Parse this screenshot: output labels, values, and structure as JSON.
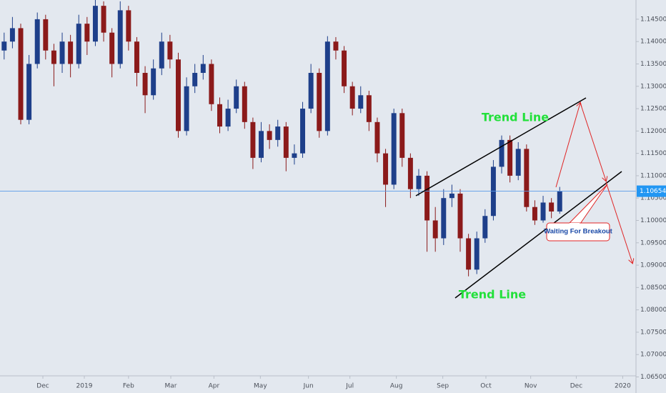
{
  "chart_data": {
    "type": "candlestick",
    "up_color": "#1e3f8a",
    "down_color": "#8b1a1a",
    "grid": false,
    "xlim": [
      -0.5,
      76.2
    ],
    "xticks": [
      {
        "value": 4.67,
        "label": "Dec"
      },
      {
        "value": 9.67,
        "label": "2019"
      },
      {
        "value": 15.0,
        "label": "Feb"
      },
      {
        "value": 20.1,
        "label": "Mar"
      },
      {
        "value": 25.3,
        "label": "Apr"
      },
      {
        "value": 30.9,
        "label": "May"
      },
      {
        "value": 36.7,
        "label": "Jun"
      },
      {
        "value": 41.7,
        "label": "Jul"
      },
      {
        "value": 47.3,
        "label": "Aug"
      },
      {
        "value": 52.9,
        "label": "Sep"
      },
      {
        "value": 58.1,
        "label": "Oct"
      },
      {
        "value": 63.5,
        "label": "Nov"
      },
      {
        "value": 69.0,
        "label": "Dec"
      },
      {
        "value": 74.6,
        "label": "2020"
      }
    ],
    "ylim": [
      1.0654,
      1.1493
    ],
    "yticks": [
      {
        "value": 1.065,
        "label": "1.06500"
      },
      {
        "value": 1.07,
        "label": "1.07000"
      },
      {
        "value": 1.075,
        "label": "1.07500"
      },
      {
        "value": 1.08,
        "label": "1.08000"
      },
      {
        "value": 1.085,
        "label": "1.08500"
      },
      {
        "value": 1.09,
        "label": "1.09000"
      },
      {
        "value": 1.095,
        "label": "1.09500"
      },
      {
        "value": 1.1,
        "label": "1.10000"
      },
      {
        "value": 1.105,
        "label": "1.10500"
      },
      {
        "value": 1.11,
        "label": "1.11000"
      },
      {
        "value": 1.115,
        "label": "1.11500"
      },
      {
        "value": 1.12,
        "label": "1.12000"
      },
      {
        "value": 1.125,
        "label": "1.12500"
      },
      {
        "value": 1.13,
        "label": "1.13000"
      },
      {
        "value": 1.135,
        "label": "1.13500"
      },
      {
        "value": 1.14,
        "label": "1.14000"
      },
      {
        "value": 1.145,
        "label": "1.14500"
      }
    ],
    "last_price": {
      "value": 1.10654,
      "label": "1.10654"
    },
    "open": [
      1.138,
      1.14,
      1.143,
      1.1225,
      1.135,
      1.145,
      1.138,
      1.135,
      1.14,
      1.135,
      1.144,
      1.14,
      1.148,
      1.142,
      1.135,
      1.147,
      1.14,
      1.133,
      1.128,
      1.134,
      1.14,
      1.136,
      1.12,
      1.13,
      1.133,
      1.135,
      1.126,
      1.121,
      1.125,
      1.13,
      1.122,
      1.114,
      1.12,
      1.118,
      1.121,
      1.114,
      1.115,
      1.125,
      1.133,
      1.12,
      1.14,
      1.138,
      1.13,
      1.125,
      1.128,
      1.122,
      1.115,
      1.108,
      1.124,
      1.114,
      1.107,
      1.11,
      1.1,
      1.096,
      1.105,
      1.106,
      1.096,
      1.089,
      1.096,
      1.101,
      1.112,
      1.118,
      1.11,
      1.116,
      1.103,
      1.1,
      1.104,
      1.102
    ],
    "high": [
      1.142,
      1.1455,
      1.144,
      1.137,
      1.1465,
      1.146,
      1.1395,
      1.142,
      1.1415,
      1.146,
      1.1455,
      1.1495,
      1.149,
      1.143,
      1.149,
      1.148,
      1.141,
      1.1345,
      1.136,
      1.142,
      1.1415,
      1.1375,
      1.132,
      1.135,
      1.137,
      1.136,
      1.1275,
      1.127,
      1.1315,
      1.131,
      1.123,
      1.122,
      1.1215,
      1.1225,
      1.122,
      1.117,
      1.1265,
      1.135,
      1.134,
      1.1412,
      1.141,
      1.139,
      1.131,
      1.13,
      1.129,
      1.123,
      1.116,
      1.125,
      1.125,
      1.115,
      1.1115,
      1.111,
      1.103,
      1.107,
      1.108,
      1.107,
      1.097,
      1.0975,
      1.1025,
      1.1135,
      1.119,
      1.119,
      1.1175,
      1.117,
      1.1045,
      1.1055,
      1.105,
      1.1075
    ],
    "low": [
      1.136,
      1.1385,
      1.1215,
      1.1215,
      1.134,
      1.136,
      1.13,
      1.133,
      1.132,
      1.134,
      1.137,
      1.139,
      1.14,
      1.132,
      1.134,
      1.138,
      1.13,
      1.124,
      1.127,
      1.1325,
      1.134,
      1.1185,
      1.119,
      1.1285,
      1.1315,
      1.1245,
      1.1195,
      1.12,
      1.124,
      1.1205,
      1.1115,
      1.113,
      1.116,
      1.1165,
      1.111,
      1.1125,
      1.114,
      1.124,
      1.1185,
      1.119,
      1.136,
      1.1285,
      1.1235,
      1.124,
      1.12,
      1.113,
      1.103,
      1.107,
      1.112,
      1.105,
      1.1055,
      1.093,
      1.093,
      1.0945,
      1.103,
      1.093,
      1.0875,
      1.088,
      1.095,
      1.1,
      1.1105,
      1.1085,
      1.109,
      1.102,
      1.099,
      1.0995,
      1.1005,
      1.1015
    ],
    "close": [
      1.14,
      1.143,
      1.1225,
      1.135,
      1.145,
      1.138,
      1.135,
      1.14,
      1.135,
      1.144,
      1.14,
      1.148,
      1.142,
      1.135,
      1.147,
      1.14,
      1.133,
      1.128,
      1.134,
      1.14,
      1.136,
      1.12,
      1.13,
      1.133,
      1.135,
      1.126,
      1.121,
      1.125,
      1.13,
      1.122,
      1.114,
      1.12,
      1.118,
      1.121,
      1.114,
      1.115,
      1.125,
      1.133,
      1.12,
      1.14,
      1.138,
      1.13,
      1.125,
      1.128,
      1.122,
      1.115,
      1.108,
      1.124,
      1.114,
      1.107,
      1.11,
      1.1,
      1.096,
      1.105,
      1.106,
      1.096,
      1.089,
      1.096,
      1.101,
      1.112,
      1.118,
      1.11,
      1.116,
      1.103,
      1.1,
      1.104,
      1.102,
      1.10654
    ],
    "annotations": [
      "Trend Line",
      "Trend Line",
      "Waiting For Breakout"
    ]
  }
}
